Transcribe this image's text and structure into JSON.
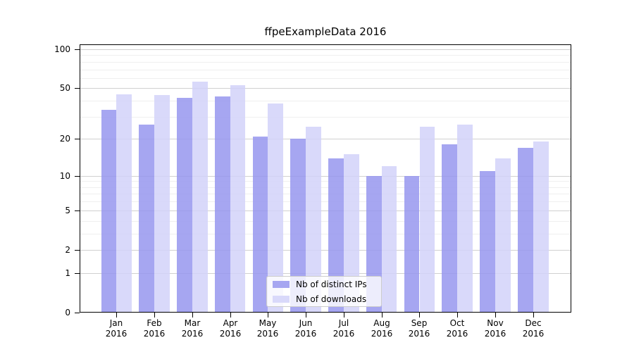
{
  "title": "ffpeExampleData 2016",
  "chart_data": {
    "type": "bar",
    "title": "ffpeExampleData 2016",
    "categories": [
      "Jan",
      "Feb",
      "Mar",
      "Apr",
      "May",
      "Jun",
      "Jul",
      "Aug",
      "Sep",
      "Oct",
      "Nov",
      "Dec"
    ],
    "year_label": "2016",
    "series": [
      {
        "name": "Nb of distinct IPs",
        "values": [
          34,
          26,
          42,
          43,
          21,
          20,
          14,
          10,
          10,
          18,
          11,
          17
        ],
        "fill": "#9696ee",
        "legend_swatch": "#a6a6f1"
      },
      {
        "name": "Nb of downloads",
        "values": [
          45,
          44,
          56,
          53,
          38,
          25,
          15,
          12,
          25,
          26,
          14,
          19
        ],
        "fill": "#d2d2f9",
        "legend_swatch": "#d9d9fa"
      }
    ],
    "bar_alpha": 0.85,
    "yscale": "log10(value+1)",
    "ylim": [
      0,
      109
    ],
    "yticks": [
      0,
      1,
      2,
      5,
      10,
      20,
      50,
      100
    ],
    "minor_gridlines": [
      3,
      4,
      6,
      7,
      8,
      9,
      30,
      40,
      60,
      70,
      80,
      90
    ],
    "grid": "horizontal",
    "legend_position": "lower center inside plot"
  },
  "colors": {
    "background": "#ffffff",
    "axis": "#000000",
    "text": "#000000",
    "major_grid": "#d0d0d0",
    "minor_grid": "#efefef",
    "legend_border": "#cccccc",
    "legend_background": "rgba(255,255,255,0.8)"
  }
}
